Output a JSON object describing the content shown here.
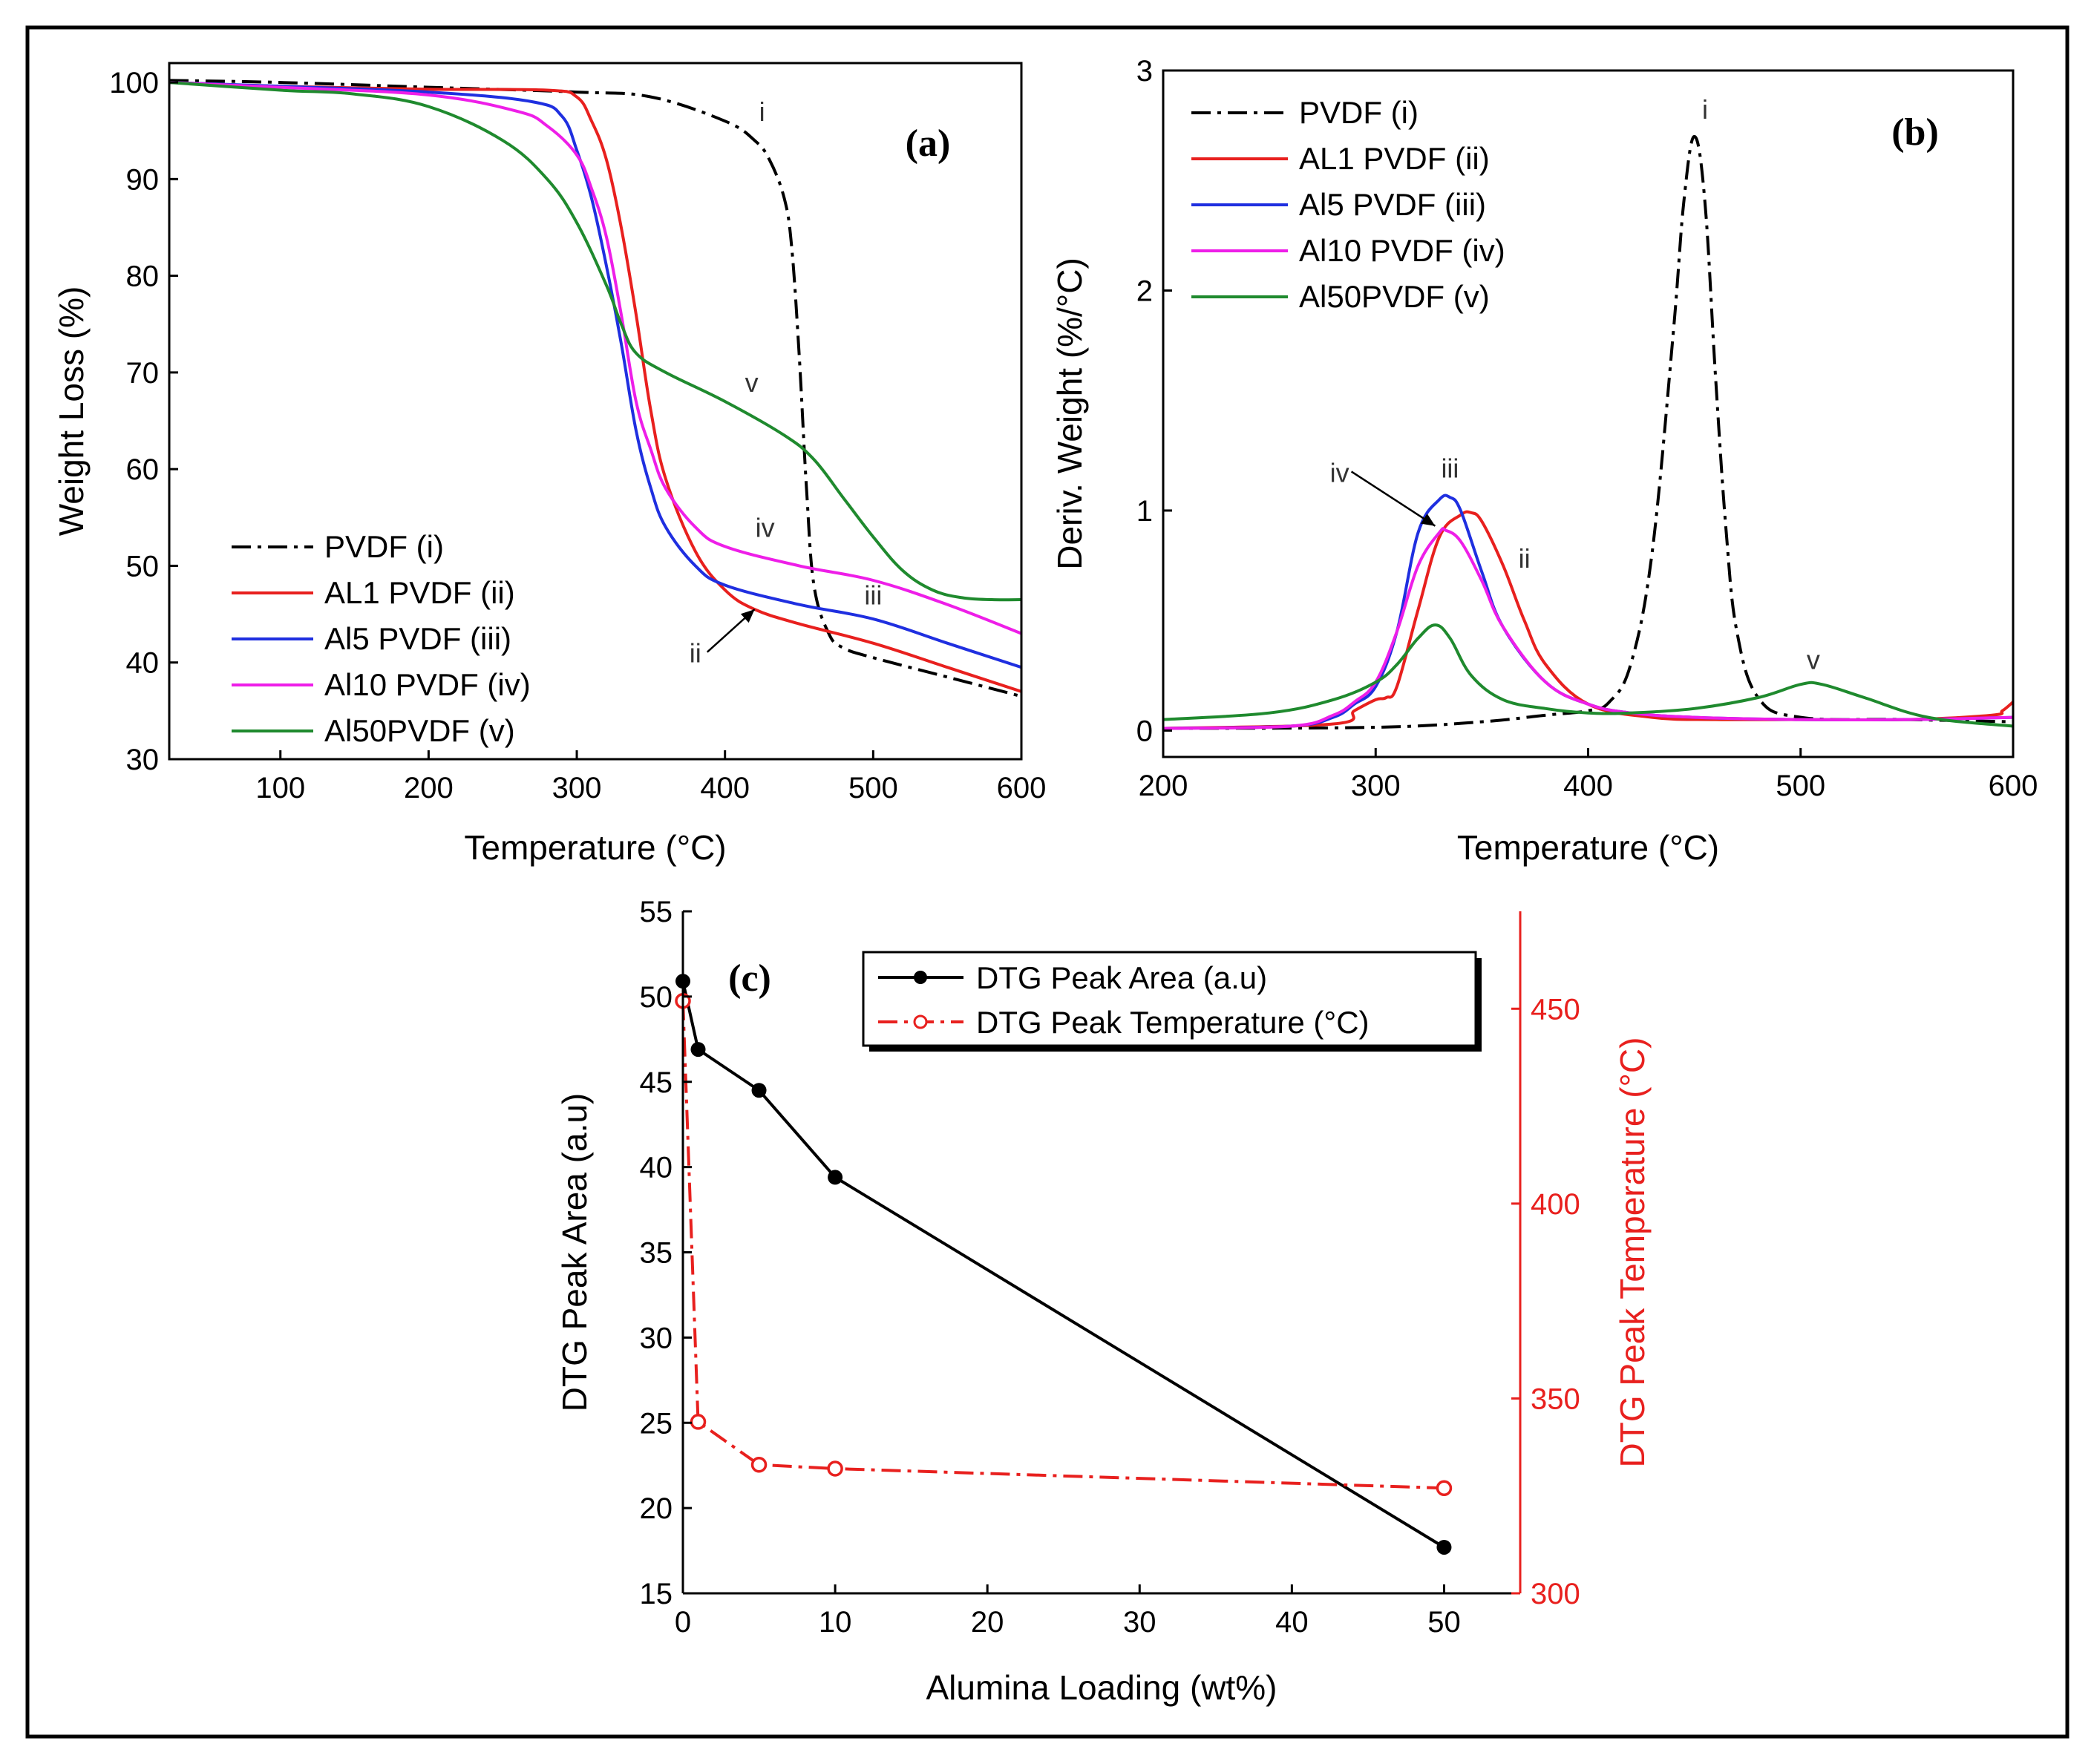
{
  "chart_data": [
    {
      "panel_label": "(a)",
      "type": "line",
      "xlabel": "Temperature (°C)",
      "ylabel": "Weight Loss (%)",
      "xlim": [
        25,
        600
      ],
      "ylim": [
        30,
        102
      ],
      "xticks": [
        100,
        200,
        300,
        400,
        500,
        600
      ],
      "yticks": [
        30,
        40,
        50,
        60,
        70,
        80,
        90,
        100
      ],
      "legend_position": "bottom-left",
      "series": [
        {
          "name": "PVDF (i)",
          "color": "#000000",
          "dash": "dashdot",
          "x": [
            25,
            100,
            200,
            300,
            350,
            400,
            420,
            430,
            440,
            445,
            450,
            455,
            460,
            470,
            480,
            500,
            550,
            600
          ],
          "y": [
            100.2,
            100,
            99.5,
            99,
            98.5,
            96,
            94,
            92,
            88,
            83,
            72,
            58,
            48,
            43,
            41.5,
            40.5,
            38.5,
            36.5
          ]
        },
        {
          "name": "AL1 PVDF (ii)",
          "color": "#e8201e",
          "dash": "solid",
          "x": [
            25,
            100,
            200,
            280,
            300,
            310,
            320,
            330,
            340,
            350,
            360,
            380,
            400,
            420,
            450,
            500,
            550,
            600
          ],
          "y": [
            100,
            99.6,
            99.3,
            99.2,
            98.5,
            96,
            92,
            85,
            76,
            66,
            59,
            51.5,
            47.5,
            45.5,
            44,
            42,
            39.5,
            37
          ]
        },
        {
          "name": "Al5 PVDF (iii)",
          "color": "#1f2fe0",
          "dash": "solid",
          "x": [
            25,
            100,
            200,
            270,
            290,
            300,
            310,
            320,
            330,
            340,
            350,
            360,
            380,
            400,
            450,
            500,
            550,
            600
          ],
          "y": [
            100,
            99.6,
            99,
            98,
            96.5,
            93,
            88,
            81,
            73,
            64,
            58,
            54,
            50,
            48,
            46,
            44.5,
            42,
            39.5
          ]
        },
        {
          "name": "Al10 PVDF (iv)",
          "color": "#ee1ee8",
          "dash": "solid",
          "x": [
            25,
            100,
            200,
            260,
            280,
            300,
            310,
            320,
            330,
            340,
            350,
            360,
            380,
            400,
            450,
            500,
            550,
            600
          ],
          "y": [
            100,
            99.5,
            98.7,
            97,
            95.5,
            92.5,
            89,
            84,
            76,
            67,
            62,
            58,
            54,
            52,
            50,
            48.5,
            46,
            43
          ]
        },
        {
          "name": "Al50PVDF (v)",
          "color": "#1f8a2e",
          "dash": "solid",
          "x": [
            25,
            100,
            150,
            200,
            250,
            280,
            300,
            320,
            330,
            340,
            360,
            400,
            440,
            460,
            480,
            500,
            520,
            540,
            560,
            580,
            600
          ],
          "y": [
            100,
            99.2,
            98.8,
            97.5,
            94,
            90,
            85.5,
            79,
            75,
            72,
            70,
            67,
            63.5,
            61,
            57,
            53,
            49.5,
            47.5,
            46.7,
            46.5,
            46.5
          ]
        }
      ],
      "annotations": [
        {
          "text": "i",
          "x": 425,
          "y": 96
        },
        {
          "text": "v",
          "x": 418,
          "y": 68
        },
        {
          "text": "iv",
          "x": 427,
          "y": 53
        },
        {
          "text": "iii",
          "x": 500,
          "y": 46
        },
        {
          "text": "ii",
          "x": 380,
          "y": 40,
          "arrow_to": {
            "x": 420,
            "y": 45.5
          }
        }
      ]
    },
    {
      "panel_label": "(b)",
      "type": "line",
      "xlabel": "Temperature (°C)",
      "ylabel": "Deriv. Weight (%/°C)",
      "xlim": [
        200,
        600
      ],
      "ylim": [
        -0.12,
        3
      ],
      "xticks": [
        200,
        300,
        400,
        500,
        600
      ],
      "yticks": [
        0,
        1,
        2,
        3
      ],
      "legend_position": "top-left",
      "series": [
        {
          "name": "PVDF (i)",
          "color": "#000000",
          "dash": "dashdot",
          "x": [
            200,
            300,
            350,
            380,
            400,
            410,
            420,
            430,
            440,
            445,
            450,
            455,
            460,
            465,
            470,
            480,
            500,
            550,
            600
          ],
          "y": [
            0.01,
            0.015,
            0.04,
            0.07,
            0.09,
            0.13,
            0.3,
            0.8,
            1.8,
            2.4,
            2.7,
            2.4,
            1.6,
            0.9,
            0.45,
            0.15,
            0.06,
            0.05,
            0.04
          ]
        },
        {
          "name": "AL1 PVDF (ii)",
          "color": "#e8201e",
          "dash": "solid",
          "x": [
            200,
            280,
            290,
            300,
            305,
            310,
            320,
            330,
            340,
            345,
            350,
            360,
            370,
            380,
            400,
            430,
            460,
            500,
            550,
            590,
            595,
            600
          ],
          "y": [
            0.01,
            0.03,
            0.09,
            0.14,
            0.15,
            0.2,
            0.55,
            0.88,
            0.98,
            0.99,
            0.95,
            0.75,
            0.5,
            0.3,
            0.12,
            0.06,
            0.05,
            0.05,
            0.05,
            0.07,
            0.09,
            0.13
          ]
        },
        {
          "name": "Al5 PVDF (iii)",
          "color": "#1f2fe0",
          "dash": "solid",
          "x": [
            200,
            260,
            280,
            290,
            300,
            310,
            320,
            330,
            335,
            340,
            350,
            360,
            380,
            400,
            420,
            450,
            500,
            550,
            600
          ],
          "y": [
            0.01,
            0.02,
            0.06,
            0.12,
            0.2,
            0.45,
            0.9,
            1.05,
            1.06,
            1.0,
            0.72,
            0.47,
            0.22,
            0.12,
            0.08,
            0.06,
            0.05,
            0.05,
            0.06
          ]
        },
        {
          "name": "Al10 PVDF (iv)",
          "color": "#ee1ee8",
          "dash": "solid",
          "x": [
            200,
            260,
            280,
            290,
            300,
            310,
            320,
            330,
            333,
            340,
            350,
            360,
            380,
            400,
            420,
            450,
            500,
            550,
            600
          ],
          "y": [
            0.01,
            0.02,
            0.07,
            0.13,
            0.22,
            0.45,
            0.75,
            0.9,
            0.91,
            0.86,
            0.68,
            0.47,
            0.22,
            0.12,
            0.08,
            0.06,
            0.05,
            0.05,
            0.06
          ]
        },
        {
          "name": "Al50PVDF (v)",
          "color": "#1f8a2e",
          "dash": "solid",
          "x": [
            200,
            250,
            280,
            300,
            310,
            320,
            328,
            335,
            345,
            360,
            380,
            400,
            420,
            450,
            480,
            500,
            510,
            530,
            560,
            600
          ],
          "y": [
            0.05,
            0.08,
            0.14,
            0.22,
            0.3,
            0.42,
            0.48,
            0.42,
            0.25,
            0.14,
            0.1,
            0.08,
            0.08,
            0.1,
            0.15,
            0.21,
            0.21,
            0.15,
            0.06,
            0.02
          ]
        }
      ],
      "annotations": [
        {
          "text": "i",
          "x": 455,
          "y": 2.78
        },
        {
          "text": "iii",
          "x": 335,
          "y": 1.15
        },
        {
          "text": "ii",
          "x": 370,
          "y": 0.74
        },
        {
          "text": "iv",
          "x": 283,
          "y": 1.13,
          "arrow_to": {
            "x": 328,
            "y": 0.93
          }
        },
        {
          "text": "v",
          "x": 506,
          "y": 0.28
        }
      ]
    },
    {
      "panel_label": "(c)",
      "type": "line",
      "xlabel": "Alumina Loading (wt%)",
      "ylabel": "DTG Peak Area (a.u)",
      "y2label": "DTG Peak Temperature (°C)",
      "xlim": [
        0,
        55
      ],
      "ylim": [
        15,
        55
      ],
      "y2lim": [
        300,
        475
      ],
      "xticks": [
        0,
        10,
        20,
        30,
        40,
        50
      ],
      "yticks": [
        15,
        20,
        25,
        30,
        35,
        40,
        45,
        50,
        55
      ],
      "y2ticks": [
        300,
        350,
        400,
        450
      ],
      "legend_position": "top-right",
      "series": [
        {
          "name": "DTG Peak Area (a.u)",
          "color": "#000000",
          "dash": "solid",
          "marker": "filled-circle",
          "axis": "left",
          "x": [
            0,
            1,
            5,
            10,
            50
          ],
          "y": [
            50.9,
            46.9,
            44.5,
            39.4,
            17.7
          ]
        },
        {
          "name": "DTG Peak Temperature (°C)",
          "color": "#e8201e",
          "dash": "dashdot",
          "marker": "open-circle",
          "axis": "right",
          "x": [
            0,
            1,
            5,
            10,
            50
          ],
          "y": [
            452,
            344,
            333,
            332,
            327
          ]
        }
      ]
    }
  ]
}
